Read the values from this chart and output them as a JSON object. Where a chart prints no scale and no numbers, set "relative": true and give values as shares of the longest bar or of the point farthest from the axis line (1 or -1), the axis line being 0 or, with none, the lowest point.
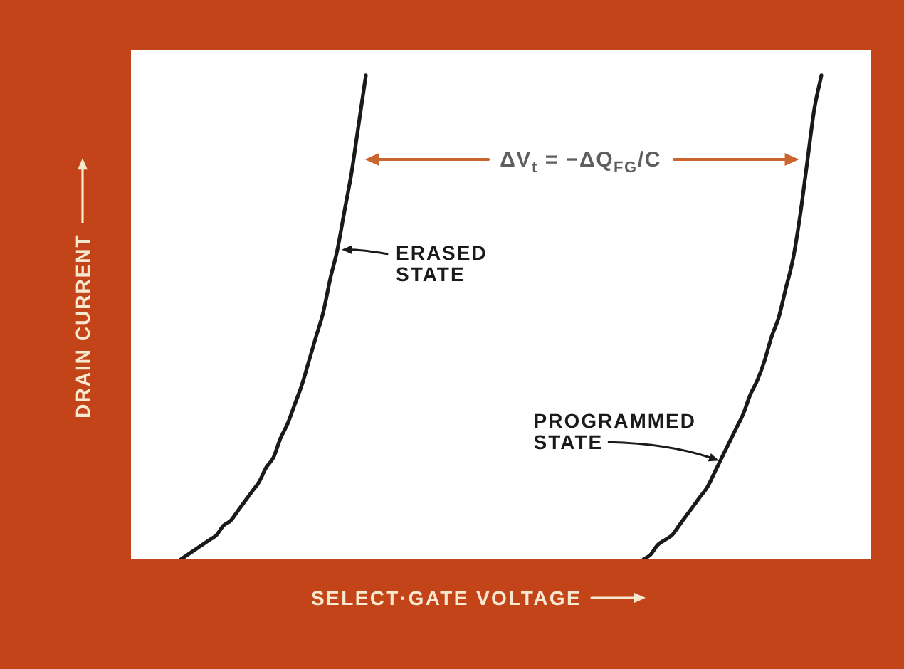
{
  "chart_data": {
    "type": "line",
    "xlabel": "SELECT·GATE VOLTAGE",
    "ylabel": "DRAIN CURRENT",
    "relative": true,
    "tick_labels": false,
    "categories": [
      null,
      null,
      null,
      null,
      null,
      null,
      null,
      null,
      null,
      null,
      null,
      null,
      null,
      null,
      null,
      null,
      null,
      null,
      null,
      null,
      null,
      null,
      null,
      null,
      null,
      null,
      null,
      null,
      null,
      null,
      null,
      null,
      null,
      null,
      null,
      null,
      null,
      null,
      null,
      null,
      null,
      null,
      null,
      null,
      null,
      null,
      null,
      null,
      null,
      null,
      null,
      null,
      null,
      null,
      null,
      null,
      null,
      null,
      null,
      null,
      null,
      null,
      null,
      null,
      null,
      null,
      null,
      null,
      null,
      null,
      null,
      null,
      null,
      null,
      null,
      null,
      null,
      null,
      null,
      null,
      null,
      null,
      null,
      null,
      null,
      null,
      null,
      null,
      null,
      null,
      null,
      null,
      null,
      null,
      null,
      null,
      null,
      null,
      null,
      null,
      null,
      null,
      null,
      null,
      null
    ],
    "series": [
      {
        "name": "ERASED STATE",
        "color": "#1a1a1a",
        "values": [
          null,
          null,
          null,
          null,
          null,
          null,
          null,
          0,
          0.01,
          0.02,
          0.03,
          0.04,
          0.05,
          0.07,
          0.08,
          0.1,
          0.12,
          0.14,
          0.16,
          0.19,
          0.21,
          0.25,
          0.28,
          0.32,
          0.36,
          0.41,
          0.46,
          0.51,
          0.58,
          0.64,
          0.72,
          0.8,
          0.9,
          1,
          null,
          null,
          null,
          null,
          null,
          null,
          null,
          null,
          null,
          null,
          null,
          null,
          null,
          null,
          null,
          null,
          null,
          null,
          null,
          null,
          null,
          null,
          null,
          null,
          null,
          null,
          null,
          null,
          null,
          null,
          null,
          null,
          null,
          null,
          null,
          null,
          null,
          null,
          null,
          null,
          null,
          null,
          null,
          null,
          null,
          null,
          null,
          null,
          null,
          null,
          null,
          null,
          null,
          null,
          null,
          null,
          null,
          null,
          null,
          null,
          null,
          null,
          null,
          null,
          null,
          null,
          null,
          null,
          null,
          null,
          null
        ]
      },
      {
        "name": "PROGRAMMED STATE",
        "color": "#1a1a1a",
        "values": [
          null,
          null,
          null,
          null,
          null,
          null,
          null,
          null,
          null,
          null,
          null,
          null,
          null,
          null,
          null,
          null,
          null,
          null,
          null,
          null,
          null,
          null,
          null,
          null,
          null,
          null,
          null,
          null,
          null,
          null,
          null,
          null,
          null,
          null,
          null,
          null,
          null,
          null,
          null,
          null,
          null,
          null,
          null,
          null,
          null,
          null,
          null,
          null,
          null,
          null,
          null,
          null,
          null,
          null,
          null,
          null,
          null,
          null,
          null,
          null,
          null,
          null,
          null,
          null,
          null,
          null,
          null,
          null,
          null,
          null,
          null,
          null,
          0,
          0.01,
          0.03,
          0.04,
          0.05,
          0.07,
          0.09,
          0.11,
          0.13,
          0.15,
          0.18,
          0.21,
          0.24,
          0.27,
          0.3,
          0.34,
          0.37,
          0.41,
          0.46,
          0.5,
          0.56,
          0.62,
          0.71,
          0.82,
          0.93,
          1,
          null,
          null,
          null,
          null,
          null,
          null,
          null
        ]
      }
    ],
    "annotations": [
      "ΔV$_{t}$ = −ΔQ$_{FG}$/C"
    ]
  }
}
